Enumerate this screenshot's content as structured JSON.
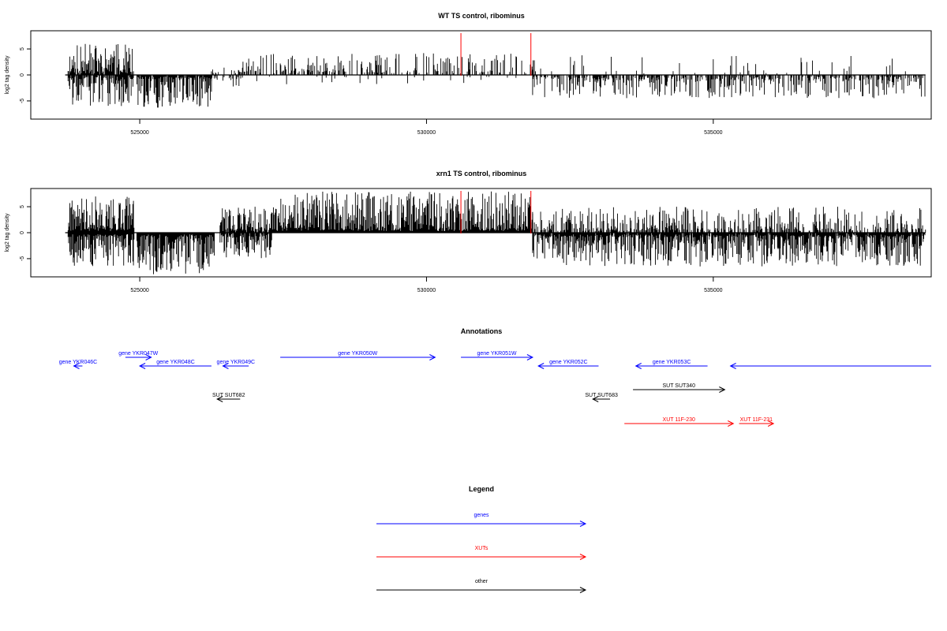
{
  "chart_data": [
    {
      "type": "bar",
      "title": "WT TS control, ribominus",
      "ylabel": "log2 tag density",
      "xlim": [
        523100,
        538800
      ],
      "ylim": [
        -8.5,
        8.5
      ],
      "x_ticks": [
        525000,
        530000,
        535000
      ],
      "x_tick_labels": [
        "525000",
        "530000",
        "535000"
      ],
      "y_ticks": [
        5,
        0,
        -5
      ],
      "y_tick_labels": [
        "5",
        "0",
        "-5"
      ],
      "baseline": {
        "x_start": 523700,
        "x_end": 538700,
        "y": 0
      },
      "markers": [
        {
          "x": 530600,
          "color": "#ff0000"
        },
        {
          "x": 531820,
          "color": "#ff0000"
        }
      ],
      "segments": [
        {
          "x_start": 523750,
          "x_end": 524900,
          "sign": 1,
          "max": 6.0,
          "density": 0.8,
          "seed": 11
        },
        {
          "x_start": 523750,
          "x_end": 524900,
          "sign": -1,
          "max": 6.0,
          "density": 0.8,
          "seed": 12
        },
        {
          "x_start": 524950,
          "x_end": 526250,
          "sign": -1,
          "max": 6.3,
          "density": 0.95,
          "seed": 13
        },
        {
          "x_start": 526250,
          "x_end": 526800,
          "sign": 1,
          "max": 1.8,
          "density": 0.25,
          "seed": 14
        },
        {
          "x_start": 526250,
          "x_end": 526800,
          "sign": -1,
          "max": 2.5,
          "density": 0.3,
          "seed": 15
        },
        {
          "x_start": 526800,
          "x_end": 531850,
          "sign": 1,
          "max": 4.2,
          "density": 0.4,
          "seed": 16
        },
        {
          "x_start": 526800,
          "x_end": 531850,
          "sign": -1,
          "max": 1.8,
          "density": 0.05,
          "seed": 17
        },
        {
          "x_start": 531850,
          "x_end": 538700,
          "sign": -1,
          "max": 4.5,
          "density": 0.6,
          "seed": 18
        },
        {
          "x_start": 531850,
          "x_end": 538700,
          "sign": 1,
          "max": 3.8,
          "density": 0.06,
          "seed": 19
        }
      ]
    },
    {
      "type": "bar",
      "title": "xrn1 TS control, ribominus",
      "ylabel": "log2 tag density",
      "xlim": [
        523100,
        538800
      ],
      "ylim": [
        -8.5,
        8.5
      ],
      "x_ticks": [
        525000,
        530000,
        535000
      ],
      "x_tick_labels": [
        "525000",
        "530000",
        "535000"
      ],
      "y_ticks": [
        5,
        0,
        -5
      ],
      "y_tick_labels": [
        "5",
        "0",
        "-5"
      ],
      "baseline": {
        "x_start": 523700,
        "x_end": 538700,
        "y": 0
      },
      "markers": [
        {
          "x": 530600,
          "color": "#ff0000"
        },
        {
          "x": 531820,
          "color": "#ff0000"
        }
      ],
      "segments": [
        {
          "x_start": 523750,
          "x_end": 524900,
          "sign": 1,
          "max": 7.0,
          "density": 1.0,
          "seed": 21
        },
        {
          "x_start": 523750,
          "x_end": 524900,
          "sign": -1,
          "max": 6.5,
          "density": 1.0,
          "seed": 22
        },
        {
          "x_start": 524950,
          "x_end": 526300,
          "sign": -1,
          "max": 8.0,
          "density": 1.0,
          "seed": 23
        },
        {
          "x_start": 526400,
          "x_end": 527300,
          "sign": 1,
          "max": 5.0,
          "density": 0.9,
          "seed": 24
        },
        {
          "x_start": 526400,
          "x_end": 527300,
          "sign": -1,
          "max": 5.0,
          "density": 0.9,
          "seed": 25
        },
        {
          "x_start": 527300,
          "x_end": 531850,
          "sign": 1,
          "max": 8.0,
          "density": 1.0,
          "seed": 26
        },
        {
          "x_start": 531850,
          "x_end": 538700,
          "sign": -1,
          "max": 6.5,
          "density": 0.95,
          "seed": 27
        },
        {
          "x_start": 531850,
          "x_end": 538700,
          "sign": 1,
          "max": 5.0,
          "density": 0.55,
          "seed": 28
        }
      ]
    }
  ],
  "annotations": {
    "title": "Annotations",
    "items": [
      {
        "label": "gene YKR046C",
        "kind": "gene",
        "x_start": 524000,
        "x_end": 523850,
        "row": 1
      },
      {
        "label": "gene YKR047W",
        "kind": "gene",
        "x_start": 524750,
        "x_end": 525200,
        "row": 0
      },
      {
        "label": "gene YKR048C",
        "kind": "gene",
        "x_start": 526250,
        "x_end": 525000,
        "row": 1
      },
      {
        "label": "gene YKR049C",
        "kind": "gene",
        "x_start": 526900,
        "x_end": 526450,
        "row": 1
      },
      {
        "label": "gene YKR050W",
        "kind": "gene",
        "x_start": 527450,
        "x_end": 530150,
        "row": 0
      },
      {
        "label": "gene YKR051W",
        "kind": "gene",
        "x_start": 530600,
        "x_end": 531850,
        "row": 0
      },
      {
        "label": "gene YKR052C",
        "kind": "gene",
        "x_start": 533000,
        "x_end": 531950,
        "row": 1
      },
      {
        "label": "gene YKR053C",
        "kind": "gene",
        "x_start": 534900,
        "x_end": 533650,
        "row": 1
      },
      {
        "label": "",
        "kind": "gene",
        "x_start": 538800,
        "x_end": 535300,
        "row": 1
      },
      {
        "label": "SUT SUT682",
        "kind": "other",
        "x_start": 526750,
        "x_end": 526350,
        "row": 4
      },
      {
        "label": "SUT SUT683",
        "kind": "other",
        "x_start": 533200,
        "x_end": 532900,
        "row": 4
      },
      {
        "label": "SUT SUT340",
        "kind": "other",
        "x_start": 533600,
        "x_end": 535200,
        "row": 3
      },
      {
        "label": "XUT 11F-230",
        "kind": "xut",
        "x_start": 533450,
        "x_end": 535350,
        "row": 5
      },
      {
        "label": "XUT 11F-231",
        "kind": "xut",
        "x_start": 535450,
        "x_end": 536050,
        "row": 5
      }
    ]
  },
  "legend": {
    "title": "Legend",
    "entries": [
      {
        "label": "genes",
        "kind": "gene"
      },
      {
        "label": "XUTs",
        "kind": "xut"
      },
      {
        "label": "other",
        "kind": "other"
      }
    ]
  },
  "colors": {
    "gene": "#0000ff",
    "xut": "#ff0000",
    "other": "#000000",
    "marker": "#ff0000",
    "bar": "#000000"
  }
}
